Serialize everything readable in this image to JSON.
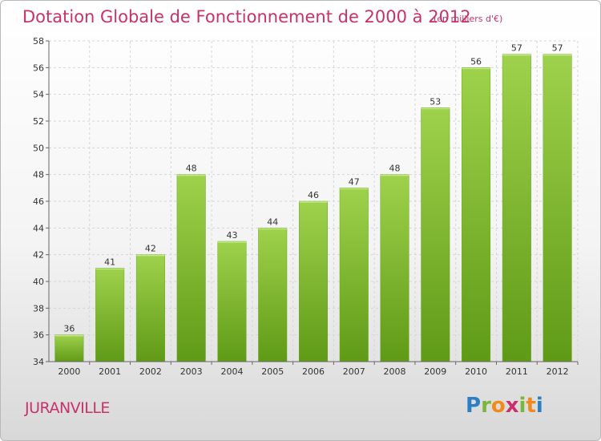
{
  "chart_data": {
    "type": "bar",
    "title": "Dotation Globale de Fonctionnement de 2000 à 2012",
    "subtitle": "(en milliers d'€)",
    "categories": [
      "2000",
      "2001",
      "2002",
      "2003",
      "2004",
      "2005",
      "2006",
      "2007",
      "2008",
      "2009",
      "2010",
      "2011",
      "2012"
    ],
    "values": [
      36,
      41,
      42,
      48,
      43,
      44,
      46,
      47,
      48,
      53,
      56,
      57,
      57
    ],
    "ylim": [
      34,
      58
    ],
    "yticks": [
      34,
      36,
      38,
      40,
      42,
      44,
      46,
      48,
      50,
      52,
      54,
      56,
      58
    ],
    "grid": true,
    "bar_color": "#7cbf2e"
  },
  "place": "JURANVILLE",
  "logo": {
    "letters": [
      "P",
      "r",
      "o",
      "x",
      "i",
      "t",
      "i"
    ]
  }
}
